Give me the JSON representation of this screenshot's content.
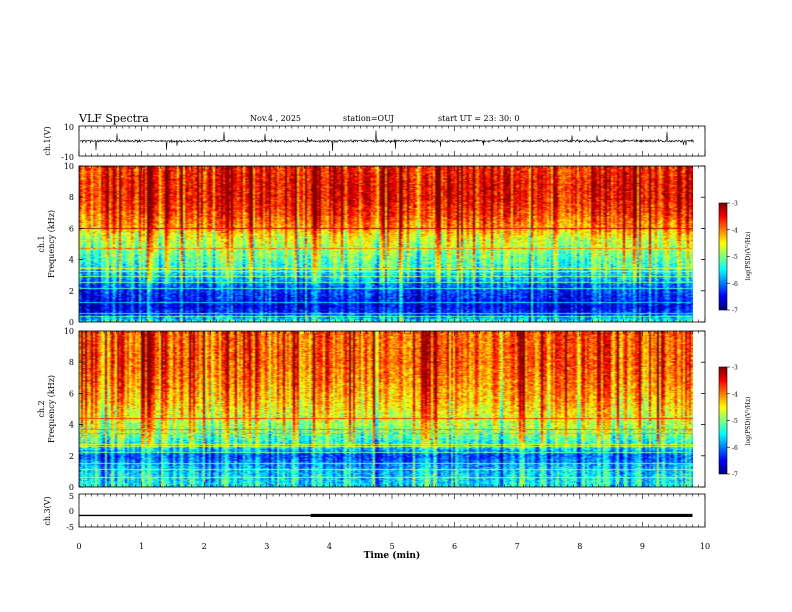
{
  "header": {
    "title": "VLF Spectra",
    "date": "Nov.4 , 2025",
    "station": "station=OUJ",
    "start_ut": "start UT = 23: 30: 0"
  },
  "colors": {
    "background": "#ffffff",
    "trace": "#000000",
    "colormap": [
      "#00007f",
      "#0000ff",
      "#007fff",
      "#00ffff",
      "#7fff7f",
      "#ffff00",
      "#ff7f00",
      "#ff0000",
      "#7f0000"
    ]
  },
  "chart_data": [
    {
      "type": "line",
      "name": "ch1-waveform",
      "ylabel": "ch.1(V)",
      "ylim": [
        -10,
        10
      ],
      "yticks": [
        "10",
        "-10"
      ],
      "xlim": [
        0,
        10
      ],
      "description_values": {
        "baseline": 0,
        "typical_amplitude": 1.5,
        "max_spike": 5
      }
    },
    {
      "type": "heatmap",
      "name": "ch1-spectrogram",
      "ylabel_lines": [
        "ch.1",
        "Frequency (kHz)"
      ],
      "ylim": [
        0,
        10
      ],
      "yticks": [
        "0",
        "2",
        "4",
        "6",
        "8",
        "10"
      ],
      "xlim": [
        0,
        9.8
      ],
      "colorbar": {
        "label": "log(PSD)(V²/Hz)",
        "range": [
          -7,
          -3
        ],
        "ticks": [
          "-3",
          "-4",
          "-5",
          "-6",
          "-7"
        ]
      },
      "profile_khz": [
        [
          0,
          -5.4
        ],
        [
          0.5,
          -6.4
        ],
        [
          1,
          -6.6
        ],
        [
          2,
          -6.3
        ],
        [
          2.5,
          -6.0
        ],
        [
          3.5,
          -5.4
        ],
        [
          4.5,
          -5.0
        ],
        [
          5.5,
          -4.6
        ],
        [
          6,
          -4.2
        ],
        [
          7,
          -3.8
        ],
        [
          8,
          -3.6
        ],
        [
          9,
          -3.6
        ],
        [
          10,
          -3.7
        ]
      ],
      "lines_khz": [
        0.3,
        0.5,
        1.2,
        2.1,
        2.5,
        2.9,
        3.2,
        3.4,
        4.7,
        6.0
      ]
    },
    {
      "type": "heatmap",
      "name": "ch2-spectrogram",
      "ylabel_lines": [
        "ch.2",
        "Frequency (kHz)"
      ],
      "ylim": [
        0,
        10
      ],
      "yticks": [
        "0",
        "2",
        "4",
        "6",
        "8",
        "10"
      ],
      "xlim": [
        0,
        9.8
      ],
      "colorbar": {
        "label": "log(PSD)(V²/Hz)",
        "range": [
          -7,
          -3
        ],
        "ticks": [
          "-3",
          "-4",
          "-5",
          "-6",
          "-7"
        ]
      },
      "profile_khz": [
        [
          0,
          -5.5
        ],
        [
          0.5,
          -5.6
        ],
        [
          1,
          -5.7
        ],
        [
          2,
          -6.2
        ],
        [
          2.5,
          -5.6
        ],
        [
          3.5,
          -5.0
        ],
        [
          4.5,
          -4.6
        ],
        [
          5.5,
          -4.3
        ],
        [
          6.5,
          -4.1
        ],
        [
          8,
          -3.9
        ],
        [
          10,
          -3.9
        ]
      ],
      "lines_khz": [
        0.6,
        1.1,
        1.5,
        2.2,
        2.6,
        2.7,
        3.4,
        3.7,
        4.4
      ]
    },
    {
      "type": "line",
      "name": "ch3-signal",
      "ylabel": "ch.3(V)",
      "ylim": [
        -5,
        5
      ],
      "yticks": [
        "5",
        "0",
        "-5"
      ],
      "xlim": [
        0,
        10
      ],
      "level": -1.5,
      "thick_from_min": 3.7,
      "end_min": 9.8
    },
    {
      "type": "axis",
      "name": "time-axis",
      "xlabel": "Time (min)",
      "xlim": [
        0,
        10
      ],
      "xticks": [
        "0",
        "1",
        "2",
        "3",
        "4",
        "5",
        "6",
        "7",
        "8",
        "9",
        "10"
      ]
    }
  ]
}
